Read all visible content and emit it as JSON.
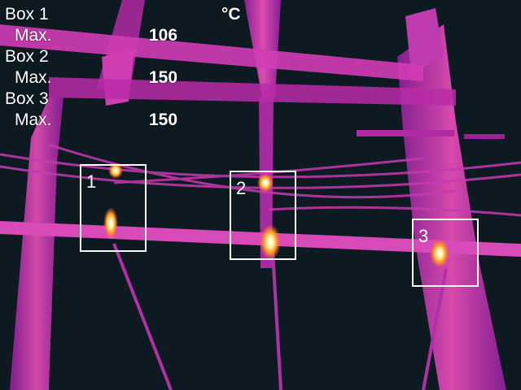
{
  "unit": "°C",
  "measurements": [
    {
      "box_label": "Box 1",
      "stat_label": "Max.",
      "value": "106",
      "marker": "1"
    },
    {
      "box_label": "Box 2",
      "stat_label": "Max.",
      "value": "150",
      "marker": "2"
    },
    {
      "box_label": "Box 3",
      "stat_label": "Max.",
      "value": "150",
      "marker": "3"
    }
  ],
  "colors": {
    "background": "#0e1a22",
    "structure": "#c832b4",
    "hot": "#ff9a1e",
    "hottest": "#fffbe0",
    "overlay_text": "#ffffff"
  }
}
